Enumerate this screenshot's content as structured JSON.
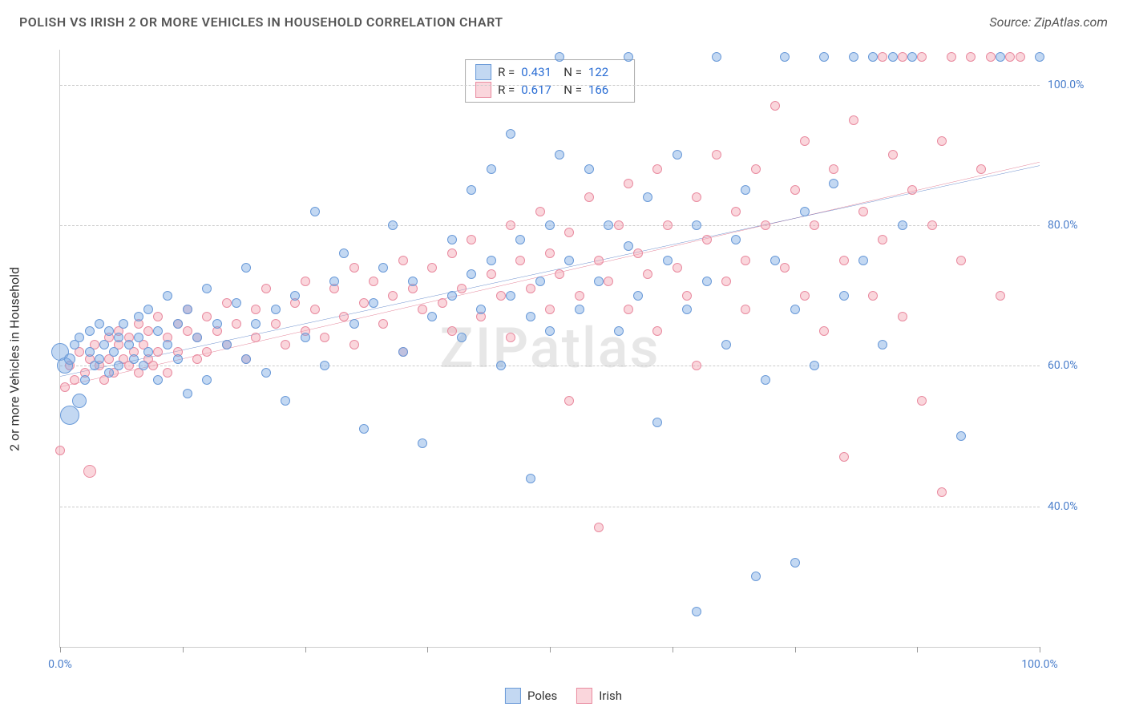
{
  "title": "POLISH VS IRISH 2 OR MORE VEHICLES IN HOUSEHOLD CORRELATION CHART",
  "source": "Source: ZipAtlas.com",
  "ylabel": "2 or more Vehicles in Household",
  "watermark": "ZIPatlas",
  "chart": {
    "type": "scatter-with-trend",
    "background_color": "#ffffff",
    "grid_color": "#cccccc",
    "grid_dash": true,
    "xlim": [
      0,
      100
    ],
    "ylim": [
      20,
      105
    ],
    "xtick_positions": [
      0,
      12.5,
      25,
      37.5,
      50,
      62.5,
      75,
      87.5,
      100
    ],
    "xtick_labels": {
      "0": "0.0%",
      "100": "100.0%"
    },
    "ytick_positions": [
      40,
      60,
      80,
      100
    ],
    "ytick_labels": {
      "40": "40.0%",
      "60": "60.0%",
      "80": "80.0%",
      "100": "100.0%"
    },
    "axis_label_color": "#4a7ecb",
    "axis_label_fontsize": 14,
    "title_fontsize": 16,
    "title_color": "#555555"
  },
  "series": {
    "poles": {
      "label": "Poles",
      "fill": "rgba(123,168,227,0.45)",
      "stroke": "#6a9ad8",
      "trend_color": "#2a5db8",
      "trend": {
        "y_at_x0": 58.5,
        "y_at_x100": 88.5
      },
      "R": "0.431",
      "N": "122",
      "points": [
        [
          0,
          62,
          22
        ],
        [
          0.5,
          60,
          20
        ],
        [
          1,
          61,
          14
        ],
        [
          1,
          53,
          24
        ],
        [
          1.5,
          63,
          12
        ],
        [
          2,
          64,
          12
        ],
        [
          2.5,
          58,
          12
        ],
        [
          2,
          55,
          18
        ],
        [
          3,
          62,
          12
        ],
        [
          3,
          65,
          12
        ],
        [
          3.5,
          60,
          12
        ],
        [
          4,
          61,
          12
        ],
        [
          4,
          66,
          12
        ],
        [
          4.5,
          63,
          12
        ],
        [
          5,
          59,
          12
        ],
        [
          5,
          65,
          12
        ],
        [
          5.5,
          62,
          12
        ],
        [
          6,
          64,
          12
        ],
        [
          6,
          60,
          12
        ],
        [
          6.5,
          66,
          12
        ],
        [
          7,
          63,
          12
        ],
        [
          7.5,
          61,
          12
        ],
        [
          8,
          67,
          12
        ],
        [
          8,
          64,
          12
        ],
        [
          8.5,
          60,
          12
        ],
        [
          9,
          68,
          12
        ],
        [
          9,
          62,
          12
        ],
        [
          10,
          65,
          12
        ],
        [
          10,
          58,
          12
        ],
        [
          11,
          63,
          12
        ],
        [
          11,
          70,
          12
        ],
        [
          12,
          66,
          12
        ],
        [
          12,
          61,
          12
        ],
        [
          13,
          68,
          12
        ],
        [
          13,
          56,
          12
        ],
        [
          14,
          64,
          12
        ],
        [
          15,
          71,
          12
        ],
        [
          15,
          58,
          12
        ],
        [
          16,
          66,
          12
        ],
        [
          17,
          63,
          12
        ],
        [
          18,
          69,
          12
        ],
        [
          19,
          74,
          12
        ],
        [
          19,
          61,
          12
        ],
        [
          20,
          66,
          12
        ],
        [
          21,
          59,
          12
        ],
        [
          22,
          68,
          12
        ],
        [
          23,
          55,
          12
        ],
        [
          24,
          70,
          12
        ],
        [
          25,
          64,
          12
        ],
        [
          26,
          82,
          12
        ],
        [
          27,
          60,
          12
        ],
        [
          28,
          72,
          12
        ],
        [
          29,
          76,
          12
        ],
        [
          30,
          66,
          12
        ],
        [
          31,
          51,
          12
        ],
        [
          32,
          69,
          12
        ],
        [
          33,
          74,
          12
        ],
        [
          34,
          80,
          12
        ],
        [
          35,
          62,
          12
        ],
        [
          36,
          72,
          12
        ],
        [
          37,
          49,
          12
        ],
        [
          38,
          67,
          12
        ],
        [
          40,
          78,
          12
        ],
        [
          40,
          70,
          12
        ],
        [
          41,
          64,
          12
        ],
        [
          42,
          85,
          12
        ],
        [
          42,
          73,
          12
        ],
        [
          43,
          68,
          12
        ],
        [
          44,
          75,
          12
        ],
        [
          44,
          88,
          12
        ],
        [
          45,
          60,
          12
        ],
        [
          46,
          93,
          12
        ],
        [
          46,
          70,
          12
        ],
        [
          47,
          78,
          12
        ],
        [
          48,
          67,
          12
        ],
        [
          48,
          44,
          12
        ],
        [
          49,
          72,
          12
        ],
        [
          50,
          80,
          12
        ],
        [
          50,
          65,
          12
        ],
        [
          51,
          90,
          12
        ],
        [
          51,
          104,
          12
        ],
        [
          52,
          75,
          12
        ],
        [
          53,
          68,
          12
        ],
        [
          54,
          88,
          12
        ],
        [
          55,
          72,
          12
        ],
        [
          56,
          80,
          12
        ],
        [
          57,
          65,
          12
        ],
        [
          58,
          104,
          12
        ],
        [
          58,
          77,
          12
        ],
        [
          59,
          70,
          12
        ],
        [
          60,
          84,
          12
        ],
        [
          61,
          52,
          12
        ],
        [
          62,
          75,
          12
        ],
        [
          63,
          90,
          12
        ],
        [
          64,
          68,
          12
        ],
        [
          65,
          25,
          12
        ],
        [
          65,
          80,
          12
        ],
        [
          66,
          72,
          12
        ],
        [
          67,
          104,
          12
        ],
        [
          68,
          63,
          12
        ],
        [
          69,
          78,
          12
        ],
        [
          70,
          85,
          12
        ],
        [
          71,
          30,
          12
        ],
        [
          72,
          58,
          12
        ],
        [
          73,
          75,
          12
        ],
        [
          74,
          104,
          12
        ],
        [
          75,
          68,
          12
        ],
        [
          75,
          32,
          12
        ],
        [
          76,
          82,
          12
        ],
        [
          77,
          60,
          12
        ],
        [
          78,
          104,
          12
        ],
        [
          79,
          86,
          12
        ],
        [
          80,
          70,
          12
        ],
        [
          81,
          104,
          12
        ],
        [
          82,
          75,
          12
        ],
        [
          83,
          104,
          12
        ],
        [
          84,
          63,
          12
        ],
        [
          85,
          104,
          12
        ],
        [
          86,
          80,
          12
        ],
        [
          87,
          104,
          12
        ],
        [
          92,
          50,
          12
        ],
        [
          96,
          104,
          12
        ],
        [
          100,
          104,
          12
        ]
      ]
    },
    "irish": {
      "label": "Irish",
      "fill": "rgba(244,164,178,0.45)",
      "stroke": "#e98ba0",
      "trend_color": "#d94a6a",
      "trend": {
        "y_at_x0": 57.0,
        "y_at_x100": 89.0
      },
      "R": "0.617",
      "N": "166",
      "points": [
        [
          0,
          48,
          12
        ],
        [
          0.5,
          57,
          12
        ],
        [
          1,
          60,
          12
        ],
        [
          1.5,
          58,
          12
        ],
        [
          2,
          62,
          12
        ],
        [
          2.5,
          59,
          12
        ],
        [
          3,
          61,
          12
        ],
        [
          3,
          45,
          16
        ],
        [
          3.5,
          63,
          12
        ],
        [
          4,
          60,
          12
        ],
        [
          4.5,
          58,
          12
        ],
        [
          5,
          64,
          12
        ],
        [
          5,
          61,
          12
        ],
        [
          5.5,
          59,
          12
        ],
        [
          6,
          63,
          12
        ],
        [
          6,
          65,
          12
        ],
        [
          6.5,
          61,
          12
        ],
        [
          7,
          60,
          12
        ],
        [
          7,
          64,
          12
        ],
        [
          7.5,
          62,
          12
        ],
        [
          8,
          66,
          12
        ],
        [
          8,
          59,
          12
        ],
        [
          8.5,
          63,
          12
        ],
        [
          9,
          61,
          12
        ],
        [
          9,
          65,
          12
        ],
        [
          9.5,
          60,
          12
        ],
        [
          10,
          67,
          12
        ],
        [
          10,
          62,
          12
        ],
        [
          11,
          64,
          12
        ],
        [
          11,
          59,
          12
        ],
        [
          12,
          66,
          12
        ],
        [
          12,
          62,
          12
        ],
        [
          13,
          65,
          12
        ],
        [
          13,
          68,
          12
        ],
        [
          14,
          61,
          12
        ],
        [
          14,
          64,
          12
        ],
        [
          15,
          67,
          12
        ],
        [
          15,
          62,
          12
        ],
        [
          16,
          65,
          12
        ],
        [
          17,
          69,
          12
        ],
        [
          17,
          63,
          12
        ],
        [
          18,
          66,
          12
        ],
        [
          19,
          61,
          12
        ],
        [
          20,
          68,
          12
        ],
        [
          20,
          64,
          12
        ],
        [
          21,
          71,
          12
        ],
        [
          22,
          66,
          12
        ],
        [
          23,
          63,
          12
        ],
        [
          24,
          69,
          12
        ],
        [
          25,
          72,
          12
        ],
        [
          25,
          65,
          12
        ],
        [
          26,
          68,
          12
        ],
        [
          27,
          64,
          12
        ],
        [
          28,
          71,
          12
        ],
        [
          29,
          67,
          12
        ],
        [
          30,
          74,
          12
        ],
        [
          30,
          63,
          12
        ],
        [
          31,
          69,
          12
        ],
        [
          32,
          72,
          12
        ],
        [
          33,
          66,
          12
        ],
        [
          34,
          70,
          12
        ],
        [
          35,
          75,
          12
        ],
        [
          35,
          62,
          12
        ],
        [
          36,
          71,
          12
        ],
        [
          37,
          68,
          12
        ],
        [
          38,
          74,
          12
        ],
        [
          39,
          69,
          12
        ],
        [
          40,
          76,
          12
        ],
        [
          40,
          65,
          12
        ],
        [
          41,
          71,
          12
        ],
        [
          42,
          78,
          12
        ],
        [
          43,
          67,
          12
        ],
        [
          44,
          73,
          12
        ],
        [
          45,
          70,
          12
        ],
        [
          46,
          80,
          12
        ],
        [
          46,
          64,
          12
        ],
        [
          47,
          75,
          12
        ],
        [
          48,
          71,
          12
        ],
        [
          49,
          82,
          12
        ],
        [
          50,
          68,
          12
        ],
        [
          50,
          76,
          12
        ],
        [
          51,
          73,
          12
        ],
        [
          52,
          79,
          12
        ],
        [
          52,
          55,
          12
        ],
        [
          53,
          70,
          12
        ],
        [
          54,
          84,
          12
        ],
        [
          55,
          75,
          12
        ],
        [
          55,
          37,
          12
        ],
        [
          56,
          72,
          12
        ],
        [
          57,
          80,
          12
        ],
        [
          58,
          68,
          12
        ],
        [
          58,
          86,
          12
        ],
        [
          59,
          76,
          12
        ],
        [
          60,
          73,
          12
        ],
        [
          61,
          88,
          12
        ],
        [
          61,
          65,
          12
        ],
        [
          62,
          80,
          12
        ],
        [
          63,
          74,
          12
        ],
        [
          64,
          70,
          12
        ],
        [
          65,
          84,
          12
        ],
        [
          65,
          60,
          12
        ],
        [
          66,
          78,
          12
        ],
        [
          67,
          90,
          12
        ],
        [
          68,
          72,
          12
        ],
        [
          69,
          82,
          12
        ],
        [
          70,
          75,
          12
        ],
        [
          70,
          68,
          12
        ],
        [
          71,
          88,
          12
        ],
        [
          72,
          80,
          12
        ],
        [
          73,
          97,
          12
        ],
        [
          74,
          74,
          12
        ],
        [
          75,
          85,
          12
        ],
        [
          76,
          70,
          12
        ],
        [
          76,
          92,
          12
        ],
        [
          77,
          80,
          12
        ],
        [
          78,
          65,
          12
        ],
        [
          79,
          88,
          12
        ],
        [
          80,
          75,
          12
        ],
        [
          80,
          47,
          12
        ],
        [
          81,
          95,
          12
        ],
        [
          82,
          82,
          12
        ],
        [
          83,
          70,
          12
        ],
        [
          84,
          104,
          12
        ],
        [
          84,
          78,
          12
        ],
        [
          85,
          90,
          12
        ],
        [
          86,
          67,
          12
        ],
        [
          86,
          104,
          12
        ],
        [
          87,
          85,
          12
        ],
        [
          88,
          104,
          12
        ],
        [
          88,
          55,
          12
        ],
        [
          89,
          80,
          12
        ],
        [
          90,
          92,
          12
        ],
        [
          90,
          42,
          12
        ],
        [
          91,
          104,
          12
        ],
        [
          92,
          75,
          12
        ],
        [
          93,
          104,
          12
        ],
        [
          94,
          88,
          12
        ],
        [
          95,
          104,
          12
        ],
        [
          96,
          70,
          12
        ],
        [
          97,
          104,
          12
        ],
        [
          98,
          104,
          12
        ]
      ]
    }
  },
  "legend_stats": {
    "r_label": "R =",
    "n_label": "N ="
  },
  "bottom_legend": {
    "poles": "Poles",
    "irish": "Irish"
  }
}
